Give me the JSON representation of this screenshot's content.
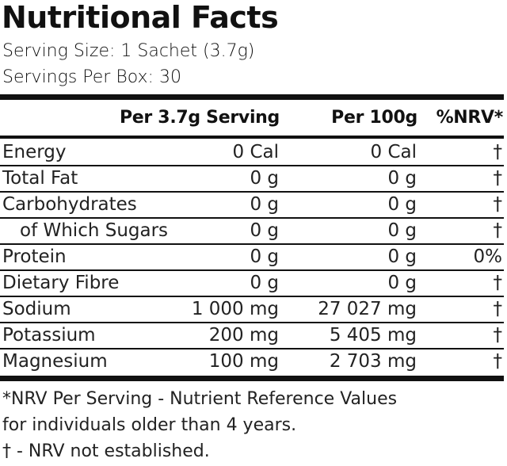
{
  "title": "Nutritional Facts",
  "serving_size": "Serving Size: 1 Sachet (3.7g)",
  "servings_per_box": "Servings Per Box: 30",
  "columns": {
    "per_serving": "Per 3.7g Serving",
    "per_100g": "Per 100g",
    "nrv": "%NRV*"
  },
  "rows": [
    {
      "name": "Energy",
      "per_serving": "0 Cal",
      "per_100g": "0 Cal",
      "nrv": "†"
    },
    {
      "name": "Total Fat",
      "per_serving": "0 g",
      "per_100g": "0 g",
      "nrv": "†"
    },
    {
      "name": "Carbohydrates",
      "per_serving": "0 g",
      "per_100g": "0 g",
      "nrv": "†"
    },
    {
      "name": "of Which Sugars",
      "per_serving": "0 g",
      "per_100g": "0 g",
      "nrv": "†"
    },
    {
      "name": "Protein",
      "per_serving": "0 g",
      "per_100g": "0 g",
      "nrv": "0%"
    },
    {
      "name": "Dietary Fibre",
      "per_serving": "0 g",
      "per_100g": "0 g",
      "nrv": "†"
    },
    {
      "name": "Sodium",
      "per_serving": "1 000 mg",
      "per_100g": "27 027 mg",
      "nrv": "†"
    },
    {
      "name": "Potassium",
      "per_serving": "200 mg",
      "per_100g": "5 405 mg",
      "nrv": "†"
    },
    {
      "name": "Magnesium",
      "per_serving": "100 mg",
      "per_100g": "2 703 mg",
      "nrv": "†"
    }
  ],
  "footnotes": {
    "line1": "*NRV Per Serving - Nutrient Reference Values",
    "line2": "for individuals older than 4 years.",
    "line3": "† - NRV not established."
  }
}
